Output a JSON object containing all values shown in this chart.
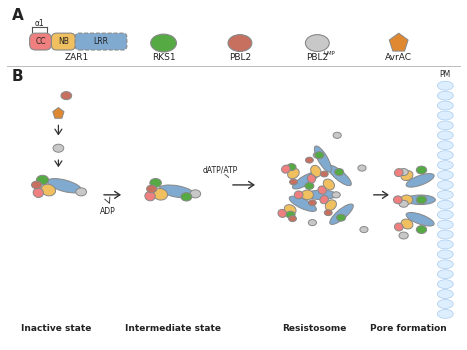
{
  "bg_color": "#ffffff",
  "panel_a_label": "A",
  "panel_b_label": "B",
  "zar1_label": "ZAR1",
  "rks1_label": "RKS1",
  "pbl2_label": "PBL2",
  "pbl2ump_label": "PBL2",
  "pbl2ump_super": "UMP",
  "avrac_label": "AvrAC",
  "alpha1_label": "α1",
  "cc_label": "CC",
  "nb_label": "NB",
  "lrr_label": "LRR",
  "state1_label": "Inactive state",
  "state2_label": "Intermediate state",
  "state3_label": "Resistosome",
  "state4_label": "Pore formation",
  "adp_label": "ADP",
  "datp_label": "dATP/ATP",
  "pm_label": "PM",
  "cc_color": "#f08080",
  "nb_color": "#f0c060",
  "lrr_color": "#80aad0",
  "rks1_color": "#55aa44",
  "pbl2_color": "#c87060",
  "pbl2ump_color": "#c8c8c8",
  "avrac_color": "#e08830",
  "membrane_color": "#aaccee",
  "membrane_fill": "#ddeeff",
  "separator_color": "#bbbbbb",
  "arrow_color": "#333333",
  "text_color": "#222222",
  "edge_color": "#888888"
}
